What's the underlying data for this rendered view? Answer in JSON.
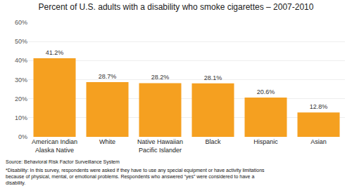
{
  "chart_data": {
    "type": "bar",
    "title": "Percent of U.S. adults with a disability who smoke cigarettes – 2007-2010",
    "categories": [
      "American Indian\nAlaska Native",
      "White",
      "Native Hawaiian\nPacific Islander",
      "Black",
      "Hispanic",
      "Asian"
    ],
    "values": [
      41.2,
      28.7,
      28.2,
      28.1,
      20.6,
      12.8
    ],
    "value_labels": [
      "41.2%",
      "28.7%",
      "28.2%",
      "28.1%",
      "20.6%",
      "12.8%"
    ],
    "data_labels": true,
    "color": "#F5A020",
    "ylim": [
      0,
      60
    ],
    "yticks": [
      {
        "value": 0,
        "label": "0%"
      },
      {
        "value": 10,
        "label": "10%"
      },
      {
        "value": 20,
        "label": "20%"
      },
      {
        "value": 30,
        "label": "30%"
      },
      {
        "value": 40,
        "label": "40%"
      },
      {
        "value": 50,
        "label": "50%"
      },
      {
        "value": 60,
        "label": "60%"
      }
    ],
    "grid": true,
    "annotations": [
      "Source: Behavioral Risk Factor Surveillance System",
      "*Disability: In this survey, respondents were asked if they have to use any special equipment or have activity limitations\nbecause of physical, mental, or emotional problems. Respondents who answered “yes” were considered to have a\ndisability."
    ]
  }
}
